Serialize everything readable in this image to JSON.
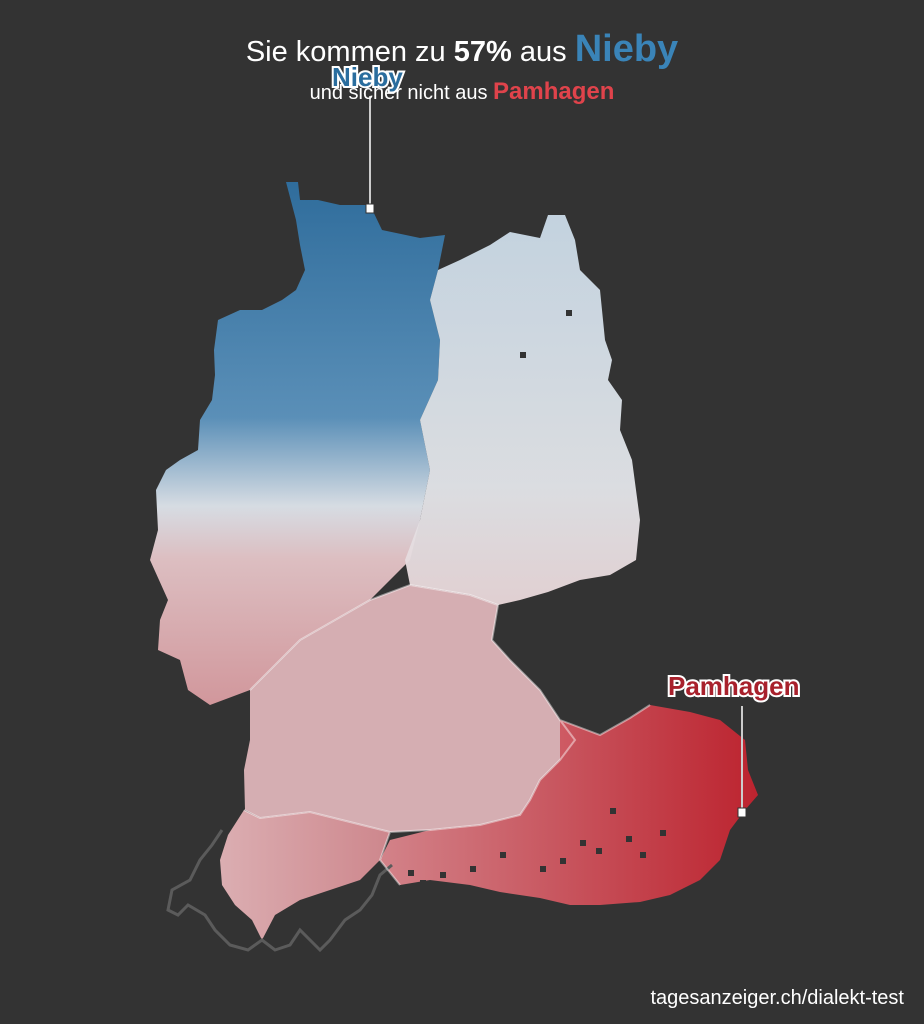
{
  "headline": {
    "prefix": "Sie kommen zu",
    "percent": "57%",
    "middle": "aus",
    "place": "Nieby"
  },
  "subline": {
    "text": "und sicher nicht aus",
    "place": "Pamhagen"
  },
  "labels": {
    "best": "Nieby",
    "worst": "Pamhagen"
  },
  "source": "tagesanzeiger.ch/dialekt-test",
  "colors": {
    "background": "#333333",
    "similar": "#2a6d9e",
    "dissimilar": "#c8202e",
    "neutral": "#e0e0e0",
    "border": "#ffffff"
  }
}
